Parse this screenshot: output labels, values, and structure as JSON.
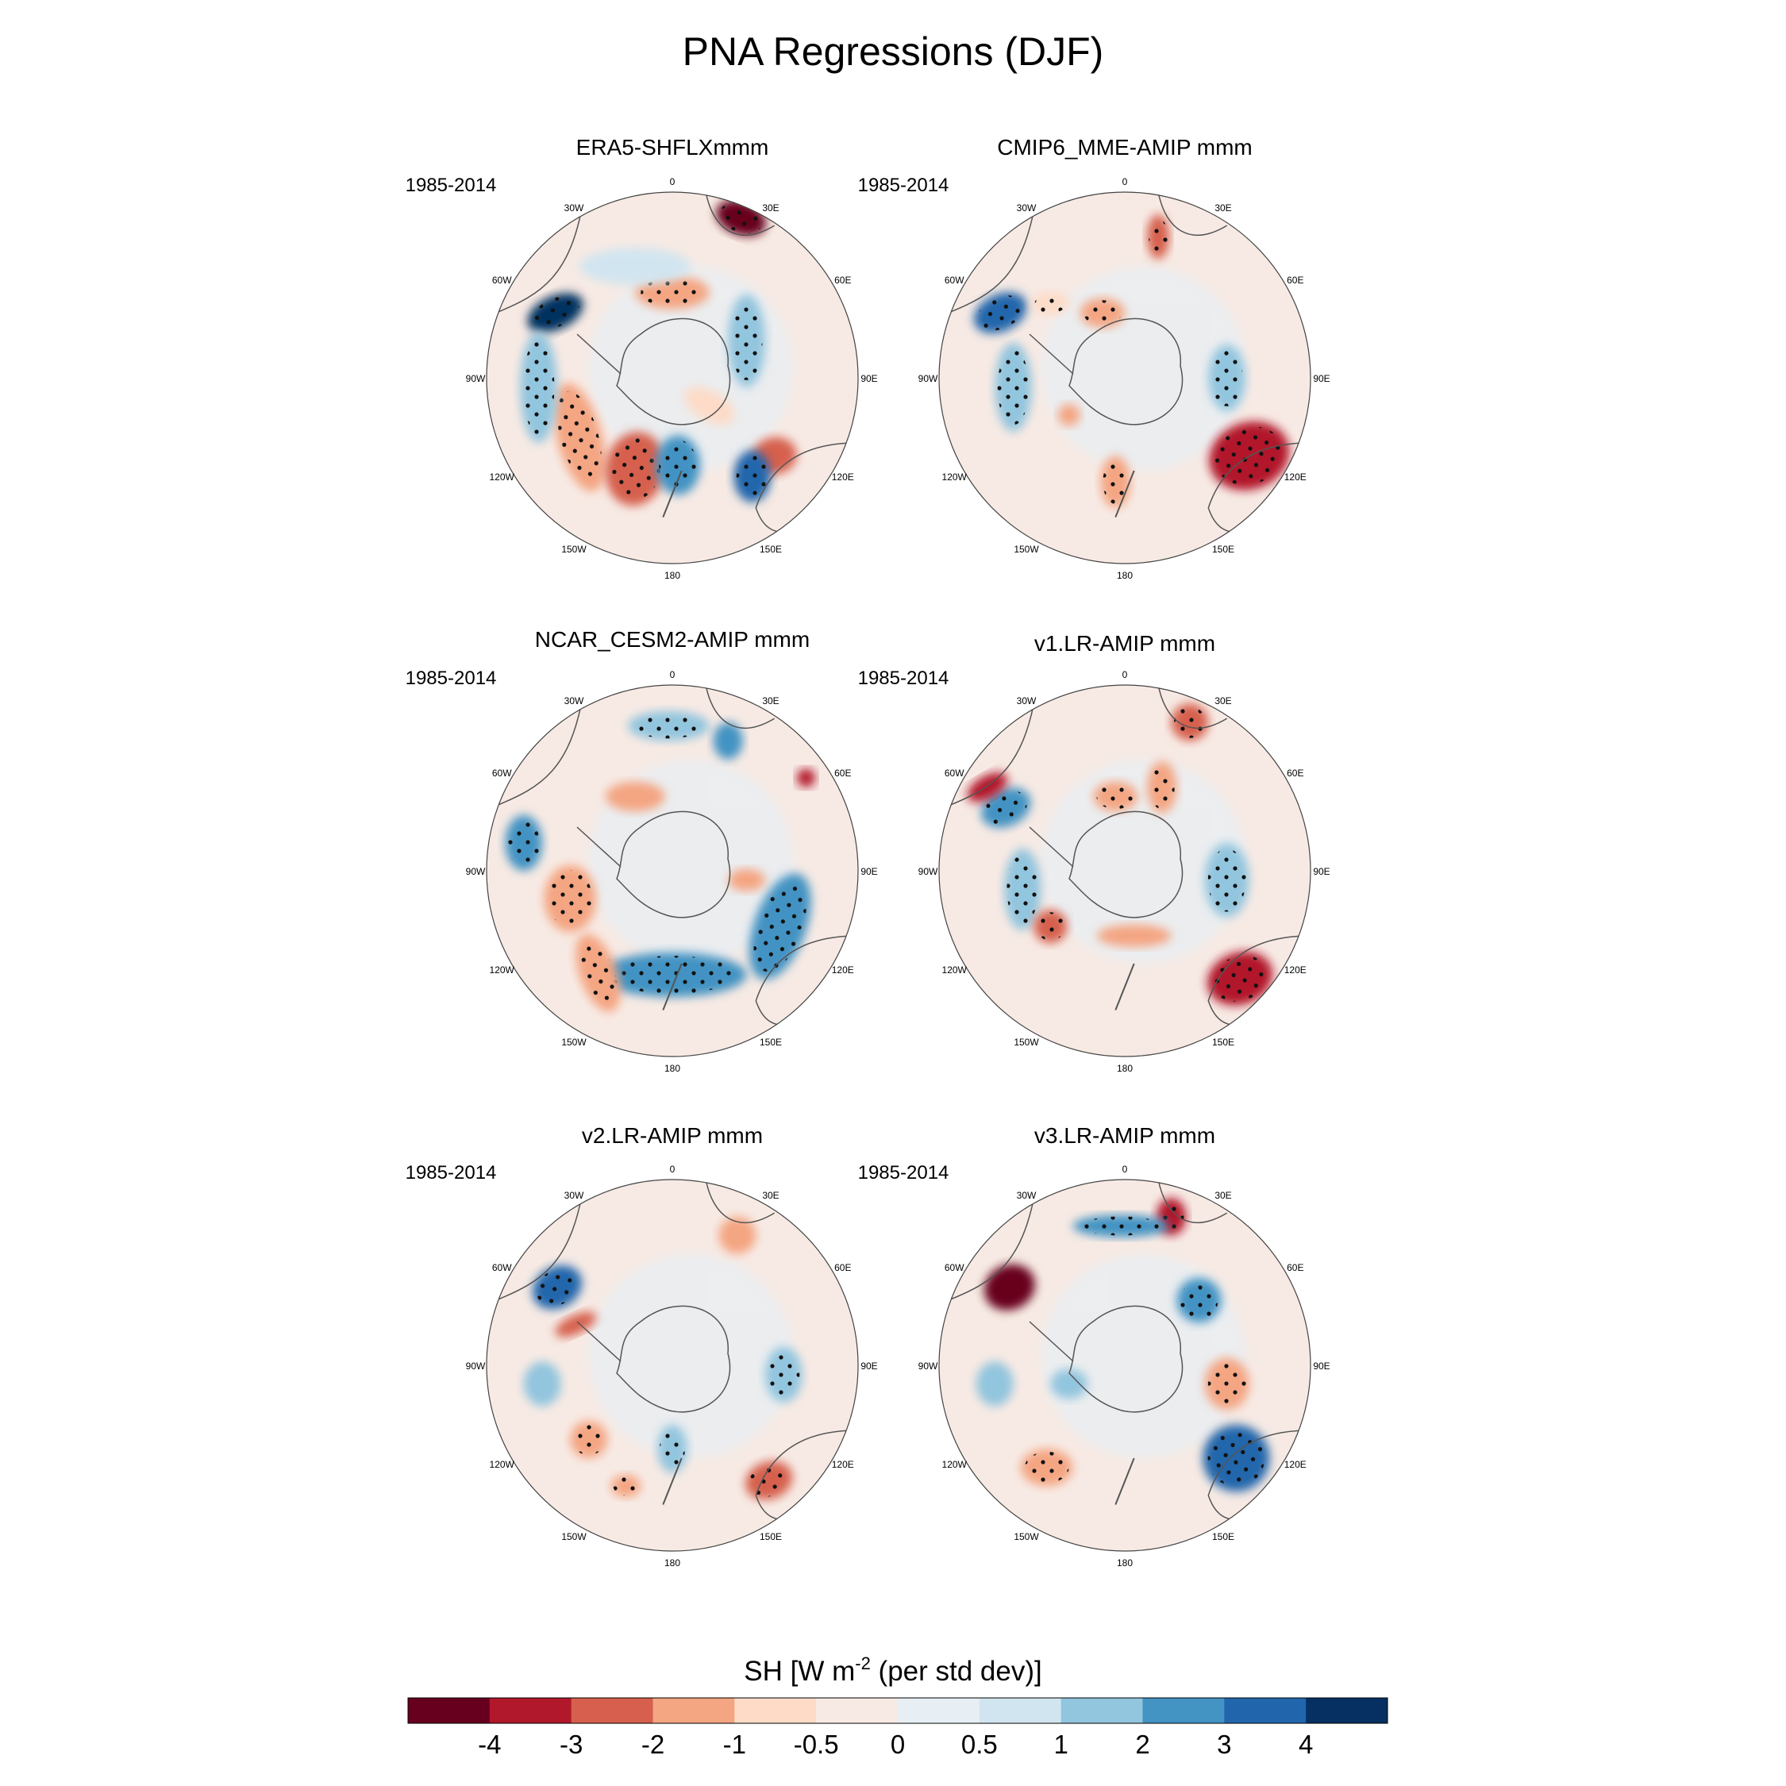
{
  "title": "PNA Regressions (DJF)",
  "period_label": "1985-2014",
  "lon_labels": [
    "0",
    "30E",
    "60E",
    "90E",
    "120E",
    "150E",
    "180",
    "150W",
    "120W",
    "90W",
    "60W",
    "30W"
  ],
  "panels": [
    {
      "id": "era5",
      "title": "ERA5-SHFLXmmm",
      "period": "1985-2014"
    },
    {
      "id": "cmip6",
      "title": "CMIP6_MME-AMIP  mmm",
      "period": "1985-2014"
    },
    {
      "id": "cesm2",
      "title": "NCAR_CESM2-AMIP  mmm",
      "period": "1985-2014"
    },
    {
      "id": "v1",
      "title": "v1.LR-AMIP  mmm",
      "period": "1985-2014"
    },
    {
      "id": "v2",
      "title": "v2.LR-AMIP  mmm",
      "period": "1985-2014"
    },
    {
      "id": "v3",
      "title": "v3.LR-AMIP  mmm",
      "period": "1985-2014"
    }
  ],
  "colorbar": {
    "label_main": "SH [W m",
    "label_sup": "-2",
    "label_tail": " (per std dev)]",
    "colors": [
      "#67001f",
      "#b2182b",
      "#d6604d",
      "#f4a582",
      "#fddbc7",
      "#f7eae4",
      "#e7eff5",
      "#d1e5f0",
      "#92c5de",
      "#4393c3",
      "#2166ac",
      "#053061"
    ],
    "ticks": [
      "-4",
      "-3",
      "-2",
      "-1",
      "-0.5",
      "0",
      "0.5",
      "1",
      "2",
      "3",
      "4"
    ]
  },
  "colors": {
    "ocean_base": "#f7eae4",
    "coast": "#555555"
  }
}
